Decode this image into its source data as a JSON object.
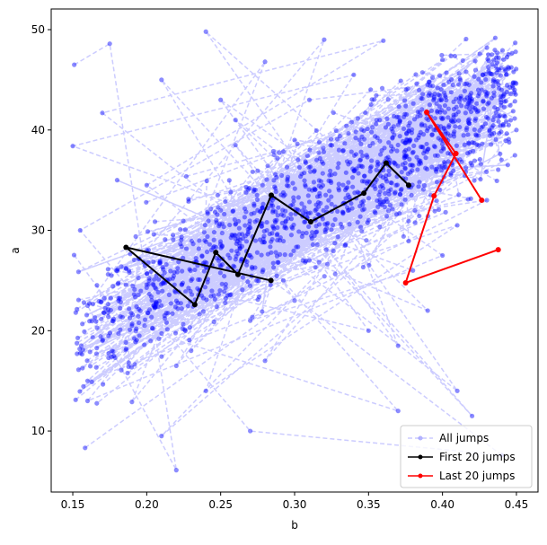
{
  "chart_data": {
    "type": "line",
    "title": "",
    "xlabel": "b",
    "ylabel": "a",
    "xlim": [
      0.1354,
      0.4646
    ],
    "ylim": [
      3.92,
      52.06
    ],
    "xticks": [
      0.15,
      0.2,
      0.25,
      0.3,
      0.35,
      0.4,
      0.45
    ],
    "xtick_labels": [
      "0.15",
      "0.20",
      "0.25",
      "0.30",
      "0.35",
      "0.40",
      "0.45"
    ],
    "yticks": [
      10,
      20,
      30,
      40,
      50
    ],
    "ytick_labels": [
      "10",
      "20",
      "30",
      "40",
      "50"
    ],
    "grid": false,
    "legend": {
      "placement": "lower-right",
      "entries": [
        "All jumps",
        "First 20 jumps",
        "Last 20 jumps"
      ]
    },
    "colors": {
      "all_line": "#ccccff",
      "all_points": "#0000ff",
      "first": "#000000",
      "last": "#ff0000"
    },
    "series": [
      {
        "name": "All jumps",
        "style": "dashed-line-with-points",
        "note_sample": "representative subset of several thousand jumps",
        "b": [
          0.151,
          0.175,
          0.22,
          0.16,
          0.28,
          0.19,
          0.33,
          0.24,
          0.41,
          0.17,
          0.36,
          0.2,
          0.44,
          0.27,
          0.155,
          0.31,
          0.39,
          0.23,
          0.43,
          0.18,
          0.35,
          0.26,
          0.42,
          0.21,
          0.3,
          0.16,
          0.4,
          0.25,
          0.37,
          0.19,
          0.45,
          0.29,
          0.22,
          0.34,
          0.15,
          0.38,
          0.27,
          0.43,
          0.2,
          0.32,
          0.24,
          0.41,
          0.17,
          0.36,
          0.28,
          0.44,
          0.23,
          0.31,
          0.18,
          0.39,
          0.26,
          0.35,
          0.21,
          0.42,
          0.3,
          0.16,
          0.4,
          0.25,
          0.37,
          0.33
        ],
        "a": [
          46.5,
          48.6,
          6.1,
          22.5,
          46.8,
          12.9,
          38.0,
          49.8,
          14.0,
          41.7,
          48.9,
          34.5,
          7.6,
          10.0,
          30.0,
          43.0,
          44.5,
          18.0,
          48.2,
          26.0,
          20.0,
          38.5,
          11.5,
          45.0,
          23.0,
          15.0,
          47.0,
          32.0,
          12.0,
          20.5,
          40.0,
          29.0,
          16.5,
          45.5,
          38.4,
          26.0,
          21.0,
          33.0,
          28.0,
          49.0,
          14.0,
          30.5,
          19.0,
          36.0,
          17.0,
          44.0,
          25.0,
          27.0,
          35.0,
          22.0,
          41.0,
          31.0,
          9.5,
          36.5,
          39.0,
          13.0,
          27.5,
          43.0,
          18.5,
          34.0
        ]
      },
      {
        "name": "First 20 jumps",
        "b": [
          0.284,
          0.186,
          0.2325,
          0.2467,
          0.2617,
          0.2842,
          0.3109,
          0.3468,
          0.3619,
          0.3771
        ],
        "a": [
          25.0,
          28.3,
          22.6,
          27.8,
          25.6,
          33.5,
          30.85,
          33.7,
          36.7,
          34.5
        ]
      },
      {
        "name": "Last 20 jumps",
        "b": [
          0.4377,
          0.3751,
          0.3943,
          0.4091,
          0.3893,
          0.4265
        ],
        "a": [
          28.07,
          24.77,
          33.44,
          37.65,
          41.77,
          33.0
        ]
      }
    ]
  }
}
